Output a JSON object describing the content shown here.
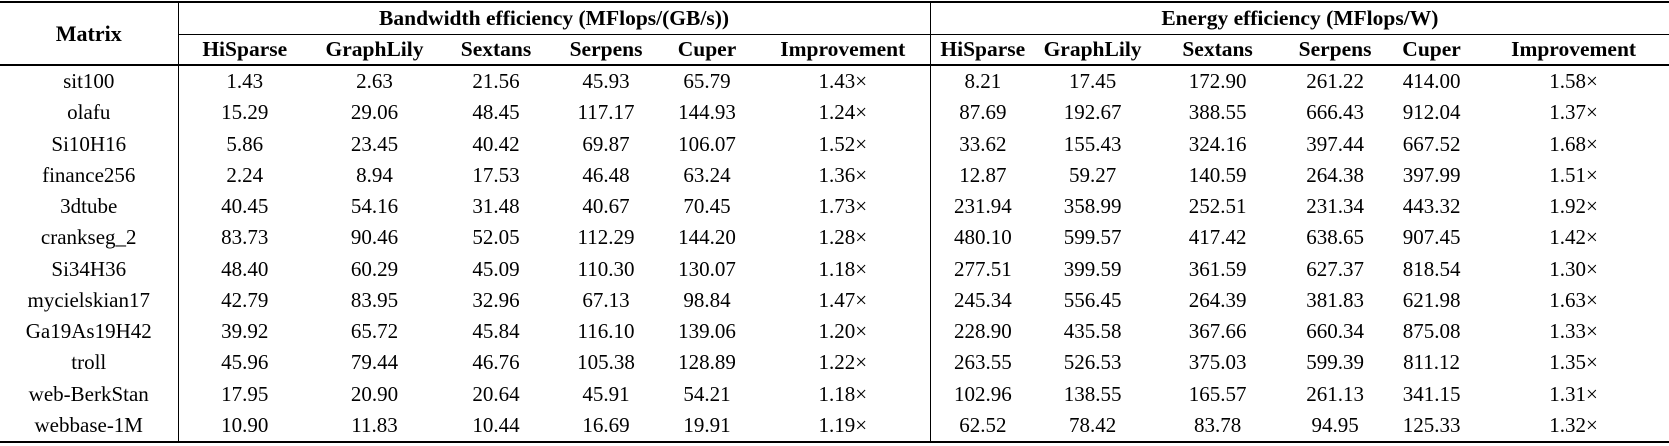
{
  "table": {
    "matrix_header": "Matrix",
    "group_headers": [
      "Bandwidth efficiency (MFlops/(GB/s))",
      "Energy efficiency (MFlops/W)"
    ],
    "subheaders": [
      "HiSparse",
      "GraphLily",
      "Sextans",
      "Serpens",
      "Cuper",
      "Improvement"
    ],
    "rows": [
      {
        "matrix": "sit100",
        "cells": [
          "1.43",
          "2.63",
          "21.56",
          "45.93",
          "65.79",
          "1.43×",
          "8.21",
          "17.45",
          "172.90",
          "261.22",
          "414.00",
          "1.58×"
        ]
      },
      {
        "matrix": "olafu",
        "cells": [
          "15.29",
          "29.06",
          "48.45",
          "117.17",
          "144.93",
          "1.24×",
          "87.69",
          "192.67",
          "388.55",
          "666.43",
          "912.04",
          "1.37×"
        ]
      },
      {
        "matrix": "Si10H16",
        "cells": [
          "5.86",
          "23.45",
          "40.42",
          "69.87",
          "106.07",
          "1.52×",
          "33.62",
          "155.43",
          "324.16",
          "397.44",
          "667.52",
          "1.68×"
        ]
      },
      {
        "matrix": "finance256",
        "cells": [
          "2.24",
          "8.94",
          "17.53",
          "46.48",
          "63.24",
          "1.36×",
          "12.87",
          "59.27",
          "140.59",
          "264.38",
          "397.99",
          "1.51×"
        ]
      },
      {
        "matrix": "3dtube",
        "cells": [
          "40.45",
          "54.16",
          "31.48",
          "40.67",
          "70.45",
          "1.73×",
          "231.94",
          "358.99",
          "252.51",
          "231.34",
          "443.32",
          "1.92×"
        ]
      },
      {
        "matrix": "crankseg_2",
        "cells": [
          "83.73",
          "90.46",
          "52.05",
          "112.29",
          "144.20",
          "1.28×",
          "480.10",
          "599.57",
          "417.42",
          "638.65",
          "907.45",
          "1.42×"
        ]
      },
      {
        "matrix": "Si34H36",
        "cells": [
          "48.40",
          "60.29",
          "45.09",
          "110.30",
          "130.07",
          "1.18×",
          "277.51",
          "399.59",
          "361.59",
          "627.37",
          "818.54",
          "1.30×"
        ]
      },
      {
        "matrix": "mycielskian17",
        "cells": [
          "42.79",
          "83.95",
          "32.96",
          "67.13",
          "98.84",
          "1.47×",
          "245.34",
          "556.45",
          "264.39",
          "381.83",
          "621.98",
          "1.63×"
        ]
      },
      {
        "matrix": "Ga19As19H42",
        "cells": [
          "39.92",
          "65.72",
          "45.84",
          "116.10",
          "139.06",
          "1.20×",
          "228.90",
          "435.58",
          "367.66",
          "660.34",
          "875.08",
          "1.33×"
        ]
      },
      {
        "matrix": "troll",
        "cells": [
          "45.96",
          "79.44",
          "46.76",
          "105.38",
          "128.89",
          "1.22×",
          "263.55",
          "526.53",
          "375.03",
          "599.39",
          "811.12",
          "1.35×"
        ]
      },
      {
        "matrix": "web-BerkStan",
        "cells": [
          "17.95",
          "20.90",
          "20.64",
          "45.91",
          "54.21",
          "1.18×",
          "102.96",
          "138.55",
          "165.57",
          "261.13",
          "341.15",
          "1.31×"
        ]
      },
      {
        "matrix": "webbase-1M",
        "cells": [
          "10.90",
          "11.83",
          "10.44",
          "16.69",
          "19.91",
          "1.19×",
          "62.52",
          "78.42",
          "83.78",
          "94.95",
          "125.33",
          "1.32×"
        ]
      }
    ]
  }
}
